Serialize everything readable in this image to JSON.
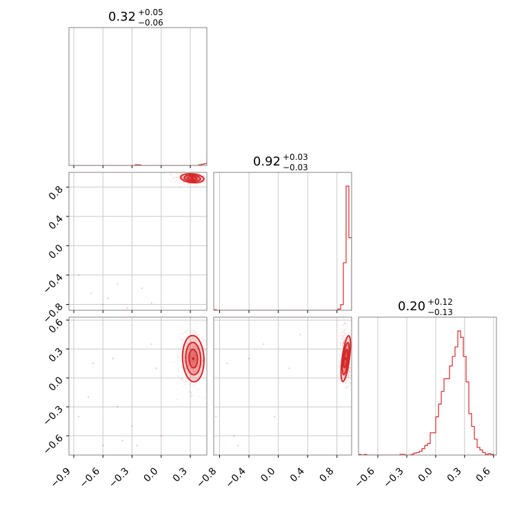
{
  "chart_data": {
    "type": "corner",
    "color": "#d62728",
    "parameters": [
      {
        "median_label": "0.32",
        "plus_label": "+0.05",
        "minus_label": "−0.06",
        "range": [
          -0.95,
          0.47
        ],
        "ticks": [
          -0.9,
          -0.6,
          -0.3,
          0.0,
          0.3
        ],
        "tick_labels": [
          "−0.9",
          "−0.6",
          "−0.3",
          "0.0",
          "0.3"
        ],
        "hist": {
          "edges_start": -0.95,
          "bin_width": 0.0284,
          "counts": [
            0,
            0,
            0,
            0,
            0,
            0,
            0,
            0,
            0,
            0,
            0,
            0,
            0,
            0,
            0,
            0,
            0,
            0,
            0,
            0,
            0,
            0,
            0,
            0,
            1,
            1,
            0,
            0,
            0,
            0,
            0,
            0,
            0,
            0,
            0,
            0,
            0,
            0,
            0,
            0,
            0,
            0,
            0,
            0,
            0,
            0,
            0,
            1,
            2,
            3,
            10,
            30,
            80,
            175,
            202,
            202,
            180,
            120,
            50,
            12,
            0
          ]
        }
      },
      {
        "median_label": "0.92",
        "plus_label": "+0.03",
        "minus_label": "−0.03",
        "range": [
          -0.88,
          1.0
        ],
        "ticks": [
          -0.8,
          -0.4,
          0.0,
          0.4,
          0.8
        ],
        "tick_labels": [
          "−0.8",
          "−0.4",
          "0.0",
          "0.4",
          "0.8"
        ],
        "hist": {
          "edges_start": -0.88,
          "bin_width": 0.0376,
          "counts": [
            1,
            0,
            0,
            0,
            0,
            0,
            0,
            0,
            0,
            0,
            0,
            0,
            0,
            0,
            0,
            0,
            0,
            0,
            0,
            0,
            0,
            0,
            0,
            0,
            0,
            0,
            0,
            0,
            0,
            0,
            0,
            0,
            0,
            0,
            0,
            0,
            0,
            0,
            0,
            0,
            0,
            0,
            0,
            0,
            0,
            2,
            10,
            85,
            222,
            130
          ]
        }
      },
      {
        "median_label": "0.20",
        "plus_label": "+0.12",
        "minus_label": "−0.13",
        "range": [
          -0.8,
          0.63
        ],
        "ticks": [
          -0.6,
          -0.3,
          0.0,
          0.3,
          0.6
        ],
        "tick_labels": [
          "−0.6",
          "−0.3",
          "0.0",
          "0.3",
          "0.6"
        ],
        "hist": {
          "edges_start": -0.8,
          "bin_width": 0.0286,
          "counts": [
            1,
            0,
            1,
            0,
            0,
            0,
            0,
            0,
            0,
            0,
            0,
            0,
            0,
            0,
            0,
            1,
            1,
            0,
            0,
            1,
            3,
            4,
            6,
            10,
            15,
            18,
            35,
            35,
            60,
            80,
            100,
            120,
            120,
            140,
            155,
            170,
            195,
            185,
            155,
            115,
            65,
            45,
            25,
            12,
            8,
            4,
            1,
            2,
            1,
            0
          ]
        }
      }
    ],
    "pairs": [
      {
        "x_param": 0,
        "y_param": 1,
        "center": [
          0.32,
          0.92
        ],
        "sd": [
          0.06,
          0.03
        ],
        "rho": -0.2
      },
      {
        "x_param": 0,
        "y_param": 2,
        "center": [
          0.33,
          0.2
        ],
        "sd": [
          0.055,
          0.12
        ],
        "rho": 0.1
      },
      {
        "x_param": 1,
        "y_param": 2,
        "center": [
          0.92,
          0.2
        ],
        "sd": [
          0.025,
          0.12
        ],
        "rho": -0.3
      }
    ],
    "scatter_outliers": {
      "0_1": [
        [
          -0.85,
          -0.4
        ],
        [
          -0.72,
          -0.65
        ],
        [
          -0.6,
          -0.8
        ],
        [
          -0.45,
          -0.52
        ],
        [
          -0.2,
          -0.58
        ],
        [
          -0.35,
          -0.85
        ],
        [
          -0.1,
          -0.78
        ],
        [
          -0.55,
          -0.72
        ]
      ],
      "0_2": [
        [
          -0.85,
          -0.4
        ],
        [
          -0.75,
          -0.2
        ],
        [
          -0.7,
          0.15
        ],
        [
          -0.6,
          -0.7
        ],
        [
          -0.5,
          0.2
        ],
        [
          -0.45,
          -0.3
        ],
        [
          -0.4,
          -0.65
        ],
        [
          -0.3,
          -0.5
        ],
        [
          -0.25,
          -0.7
        ],
        [
          -0.1,
          0.35
        ],
        [
          0.0,
          -0.6
        ],
        [
          -0.05,
          0.1
        ]
      ],
      "1_2": [
        [
          -0.85,
          -0.4
        ],
        [
          -0.7,
          0.15
        ],
        [
          -0.55,
          -0.7
        ],
        [
          -0.4,
          0.2
        ],
        [
          -0.2,
          0.35
        ],
        [
          -0.05,
          -0.4
        ],
        [
          0.15,
          0.1
        ],
        [
          0.3,
          0.45
        ],
        [
          -0.6,
          -0.6
        ]
      ]
    }
  }
}
